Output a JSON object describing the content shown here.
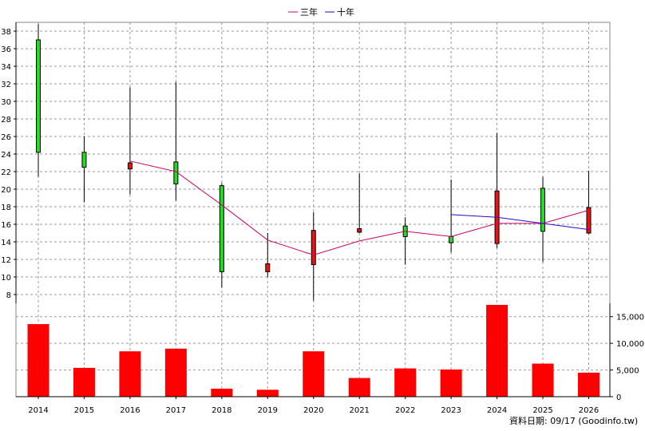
{
  "chart_data": {
    "type": "candlestick+line+bar",
    "legend": [
      {
        "name": "三年",
        "color": "#cc0066"
      },
      {
        "name": "十年",
        "color": "#3300cc"
      }
    ],
    "legend_position": "top-center",
    "grid": true,
    "categories": [
      "2014",
      "2015",
      "2016",
      "2017",
      "2018",
      "2019",
      "2020",
      "2021",
      "2022",
      "2023",
      "2024",
      "2025",
      "2026"
    ],
    "price_axis": {
      "ylim": [
        7,
        39
      ],
      "ticks": [
        "8",
        "10",
        "12",
        "14",
        "16",
        "18",
        "20",
        "22",
        "24",
        "26",
        "28",
        "30",
        "32",
        "34",
        "36",
        "38"
      ]
    },
    "volume_axis": {
      "ylim": [
        0,
        17500
      ],
      "ticks": [
        "0",
        "5,000",
        "10,000",
        "15,000"
      ]
    },
    "candles": [
      {
        "year": "2014",
        "open": 24.2,
        "close": 37.0,
        "high": 38.8,
        "low": 21.4,
        "color": "#22dd22"
      },
      {
        "year": "2015",
        "open": 22.5,
        "close": 24.2,
        "high": 26.0,
        "low": 18.5,
        "color": "#22dd22"
      },
      {
        "year": "2016",
        "open": 23.0,
        "close": 22.3,
        "high": 31.6,
        "low": 19.4,
        "color": "#ee1111"
      },
      {
        "year": "2017",
        "open": 20.6,
        "close": 23.1,
        "high": 32.2,
        "low": 18.7,
        "color": "#22dd22"
      },
      {
        "year": "2018",
        "open": 10.6,
        "close": 20.4,
        "high": 20.7,
        "low": 8.8,
        "color": "#22dd22"
      },
      {
        "year": "2019",
        "open": 11.5,
        "close": 10.6,
        "high": 15.0,
        "low": 10.0,
        "color": "#ee1111"
      },
      {
        "year": "2020",
        "open": 15.3,
        "close": 11.4,
        "high": 17.4,
        "low": 7.3,
        "color": "#ee1111"
      },
      {
        "year": "2021",
        "open": 15.5,
        "close": 15.1,
        "high": 21.8,
        "low": 15.0,
        "color": "#ee1111"
      },
      {
        "year": "2022",
        "open": 14.6,
        "close": 15.8,
        "high": 16.8,
        "low": 11.4,
        "color": "#22dd22"
      },
      {
        "year": "2023",
        "open": 13.9,
        "close": 14.6,
        "high": 21.1,
        "low": 12.8,
        "color": "#22dd22"
      },
      {
        "year": "2024",
        "open": 19.8,
        "close": 13.8,
        "high": 26.4,
        "low": 13.3,
        "color": "#ee1111"
      },
      {
        "year": "2025",
        "open": 15.2,
        "close": 20.1,
        "high": 21.4,
        "low": 11.7,
        "color": "#22dd22"
      },
      {
        "year": "2026",
        "open": 17.9,
        "close": 15.0,
        "high": 22.1,
        "low": 14.9,
        "color": "#ee1111"
      }
    ],
    "series": [
      {
        "name": "三年",
        "color": "#cc0066",
        "x": [
          "2016",
          "2017",
          "2018",
          "2019",
          "2020",
          "2021",
          "2022",
          "2023",
          "2024",
          "2025",
          "2026"
        ],
        "values": [
          23.2,
          22.0,
          18.2,
          14.2,
          12.5,
          14.1,
          15.2,
          14.6,
          16.1,
          16.1,
          17.6
        ]
      },
      {
        "name": "十年",
        "color": "#3300cc",
        "x": [
          "2023",
          "2024",
          "2025",
          "2026"
        ],
        "values": [
          17.1,
          16.8,
          16.1,
          15.4
        ]
      }
    ],
    "volume": [
      13600,
      5400,
      8500,
      9000,
      1500,
      1300,
      8500,
      3500,
      5300,
      5100,
      17200,
      6200,
      4500
    ],
    "volume_color": "#ff0000"
  },
  "source_label": "資料日期: 09/17  (Goodinfo.tw)"
}
